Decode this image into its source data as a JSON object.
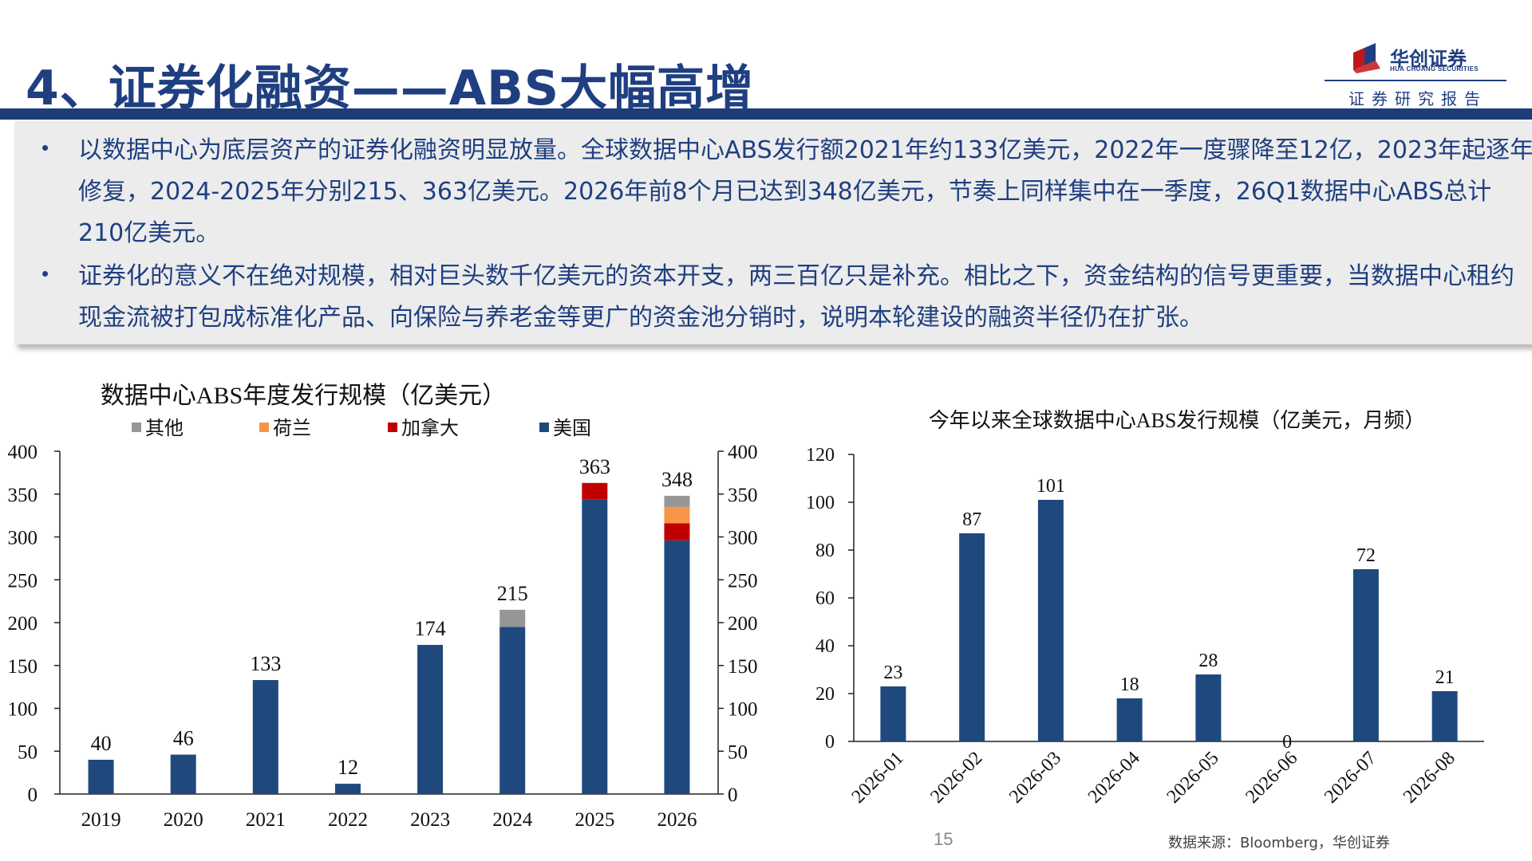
{
  "header": {
    "title": "4、证券化融资——ABS大幅高增",
    "logo_cn": "华创证券",
    "logo_en": "HUA CHUANG SECURITIES",
    "report_label": "证券研究报告"
  },
  "bullets": [
    "以数据中心为底层资产的证券化融资明显放量。全球数据中心ABS发行额2021年约133亿美元，2022年一度骤降至12亿，2023年起逐年修复，2024-2025年分别215、363亿美元。2026年前8个月已达到348亿美元，节奏上同样集中在一季度，26Q1数据中心ABS总计210亿美元。",
    "证券化的意义不在绝对规模，相对巨头数千亿美元的资本开支，两三百亿只是补充。相比之下，资金结构的信号更重要，当数据中心租约现金流被打包成标准化产品、向保险与养老金等更广的资金池分销时，说明本轮建设的融资半径仍在扩张。"
  ],
  "bullet_symbol": "•",
  "chart_data": [
    {
      "type": "bar",
      "stacked": true,
      "title": "数据中心ABS年度发行规模（亿美元）",
      "categories": [
        "2019",
        "2020",
        "2021",
        "2022",
        "2023",
        "2024",
        "2025",
        "2026"
      ],
      "series": [
        {
          "name": "美国",
          "color": "#1f497d",
          "values": [
            40,
            46,
            133,
            12,
            174,
            195,
            344,
            296
          ]
        },
        {
          "name": "加拿大",
          "color": "#c00000",
          "values": [
            0,
            0,
            0,
            0,
            0,
            0,
            19,
            20
          ]
        },
        {
          "name": "荷兰",
          "color": "#f79646",
          "values": [
            0,
            0,
            0,
            0,
            0,
            0,
            0,
            19
          ]
        },
        {
          "name": "其他",
          "color": "#969696",
          "values": [
            0,
            0,
            0,
            0,
            0,
            20,
            0,
            13
          ]
        }
      ],
      "legend_order": [
        "其他",
        "荷兰",
        "加拿大",
        "美国"
      ],
      "totals": [
        40,
        46,
        133,
        12,
        174,
        215,
        363,
        348
      ],
      "ylim": [
        0,
        400
      ],
      "yticks": [
        0,
        50,
        100,
        150,
        200,
        250,
        300,
        350,
        400
      ],
      "dual_y_axis": true,
      "legend_position": "top",
      "grid": false
    },
    {
      "type": "bar",
      "title": "今年以来全球数据中心ABS发行规模（亿美元，月频）",
      "categories": [
        "2026-01",
        "2026-02",
        "2026-03",
        "2026-04",
        "2026-05",
        "2026-06",
        "2026-07",
        "2026-08"
      ],
      "values": [
        23,
        87,
        101,
        18,
        28,
        0,
        72,
        21
      ],
      "value_labels": [
        "23",
        "87",
        "101",
        "18",
        "28",
        "0",
        "72",
        "21"
      ],
      "color": "#1f497d",
      "ylim": [
        0,
        120
      ],
      "yticks": [
        0,
        20,
        40,
        60,
        80,
        100,
        120
      ],
      "grid": false
    }
  ],
  "footer": {
    "page_number": "15",
    "source": "数据来源：Bloomberg，华创证券"
  }
}
